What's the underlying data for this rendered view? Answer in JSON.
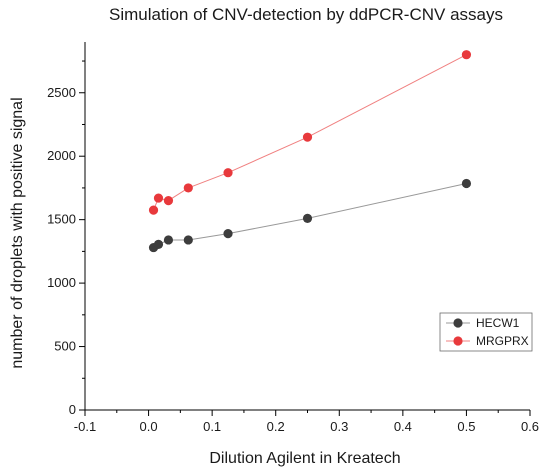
{
  "chart_data": {
    "type": "line",
    "title": "Simulation of CNV-detection by ddPCR-CNV assays",
    "xlabel": "Dilution Agilent in Kreatech",
    "ylabel": "number of droplets with positive signal",
    "xlim": [
      -0.1,
      0.6
    ],
    "ylim": [
      0,
      2900
    ],
    "x_ticks": [
      -0.1,
      0.0,
      0.1,
      0.2,
      0.3,
      0.4,
      0.5,
      0.6
    ],
    "x_tick_labels": [
      "-0.1",
      "0.0",
      "0.1",
      "0.2",
      "0.3",
      "0.4",
      "0.5",
      "0.6"
    ],
    "y_ticks": [
      0,
      500,
      1000,
      1500,
      2000,
      2500
    ],
    "y_tick_labels": [
      "0",
      "500",
      "1000",
      "1500",
      "2000",
      "2500"
    ],
    "grid": false,
    "legend_position": "bottom-right",
    "series": [
      {
        "name": "HECW1",
        "color": "#3d3d3d",
        "line_color": "#999999",
        "x": [
          0.0078,
          0.0156,
          0.03125,
          0.0625,
          0.125,
          0.25,
          0.5
        ],
        "y": [
          1280,
          1305,
          1340,
          1340,
          1390,
          1510,
          1785
        ]
      },
      {
        "name": "MRGPRX",
        "color": "#e8393c",
        "line_color": "#f08080",
        "x": [
          0.0078,
          0.0156,
          0.03125,
          0.0625,
          0.125,
          0.25,
          0.5
        ],
        "y": [
          1575,
          1670,
          1650,
          1750,
          1870,
          2150,
          2800
        ]
      }
    ]
  }
}
